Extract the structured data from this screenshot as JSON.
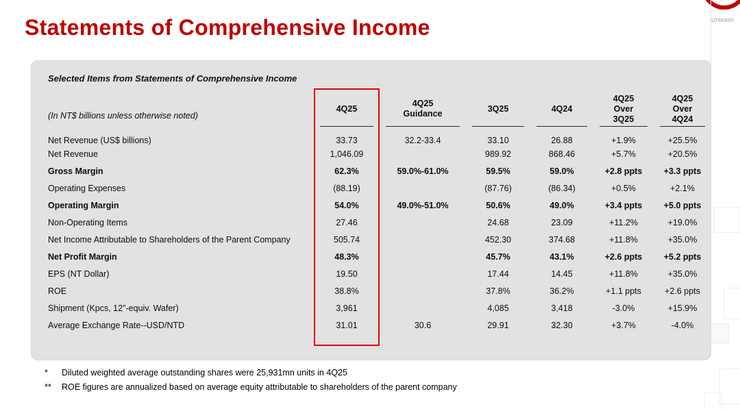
{
  "title": "Statements of Comprehensive Income",
  "brand": {
    "tagline": "Unleash"
  },
  "table": {
    "caption": "Selected Items from Statements of Comprehensive Income",
    "unit_note": "(In NT$ billions unless otherwise noted)",
    "columns": [
      {
        "lines": [
          "4Q25"
        ]
      },
      {
        "lines": [
          "4Q25",
          "Guidance"
        ]
      },
      {
        "lines": [
          "3Q25"
        ]
      },
      {
        "lines": [
          "4Q24"
        ]
      },
      {
        "lines": [
          "4Q25",
          "Over",
          "3Q25"
        ]
      },
      {
        "lines": [
          "4Q25",
          "Over",
          "4Q24"
        ]
      }
    ],
    "rows": [
      {
        "label": "Net Revenue (US$ billions)",
        "bold": false,
        "values": [
          "33.73",
          "32.2-33.4",
          "33.10",
          "26.88",
          "+1.9%",
          "+25.5%"
        ]
      },
      {
        "label": "Net Revenue",
        "bold": false,
        "values": [
          "1,046.09",
          "",
          "989.92",
          "868.46",
          "+5.7%",
          "+20.5%"
        ]
      },
      {
        "label": "Gross Margin",
        "bold": true,
        "values": [
          "62.3%",
          "59.0%-61.0%",
          "59.5%",
          "59.0%",
          "+2.8 ppts",
          "+3.3 ppts"
        ]
      },
      {
        "label": "Operating Expenses",
        "bold": false,
        "values": [
          "(88.19)",
          "",
          "(87.76)",
          "(86.34)",
          "+0.5%",
          "+2.1%"
        ]
      },
      {
        "label": "Operating Margin",
        "bold": true,
        "values": [
          "54.0%",
          "49.0%-51.0%",
          "50.6%",
          "49.0%",
          "+3.4 ppts",
          "+5.0 ppts"
        ]
      },
      {
        "label": "Non-Operating Items",
        "bold": false,
        "values": [
          "27.46",
          "",
          "24.68",
          "23.09",
          "+11.2%",
          "+19.0%"
        ]
      },
      {
        "label": "Net Income Attributable to Shareholders of the Parent Company",
        "bold": false,
        "values": [
          "505.74",
          "",
          "452.30",
          "374.68",
          "+11.8%",
          "+35.0%"
        ]
      },
      {
        "label": "Net Profit Margin",
        "bold": true,
        "values": [
          "48.3%",
          "",
          "45.7%",
          "43.1%",
          "+2.6 ppts",
          "+5.2 ppts"
        ]
      },
      {
        "label": "EPS (NT Dollar)",
        "bold": false,
        "values": [
          "19.50",
          "",
          "17.44",
          "14.45",
          "+11.8%",
          "+35.0%"
        ]
      },
      {
        "label": "ROE",
        "bold": false,
        "values": [
          "38.8%",
          "",
          "37.8%",
          "36.2%",
          "+1.1 ppts",
          "+2.6 ppts"
        ]
      },
      {
        "label": "Shipment (Kpcs, 12\"-equiv. Wafer)",
        "bold": false,
        "values": [
          "3,961",
          "",
          "4,085",
          "3,418",
          "-3.0%",
          "+15.9%"
        ]
      },
      {
        "label": "Average Exchange Rate--USD/NTD",
        "bold": false,
        "values": [
          "31.01",
          "30.6",
          "29.91",
          "32.30",
          "+3.7%",
          "-4.0%"
        ]
      }
    ]
  },
  "footnotes": [
    {
      "marker": "*",
      "text": "Diluted weighted average outstanding shares were 25,931mn units in 4Q25"
    },
    {
      "marker": "**",
      "text": "ROE figures are annualized based on average equity attributable to shareholders of the parent company"
    }
  ],
  "colors": {
    "accent_red": "#C00000",
    "highlight_border": "#E60000",
    "panel_bg": "#E2E2E2"
  }
}
